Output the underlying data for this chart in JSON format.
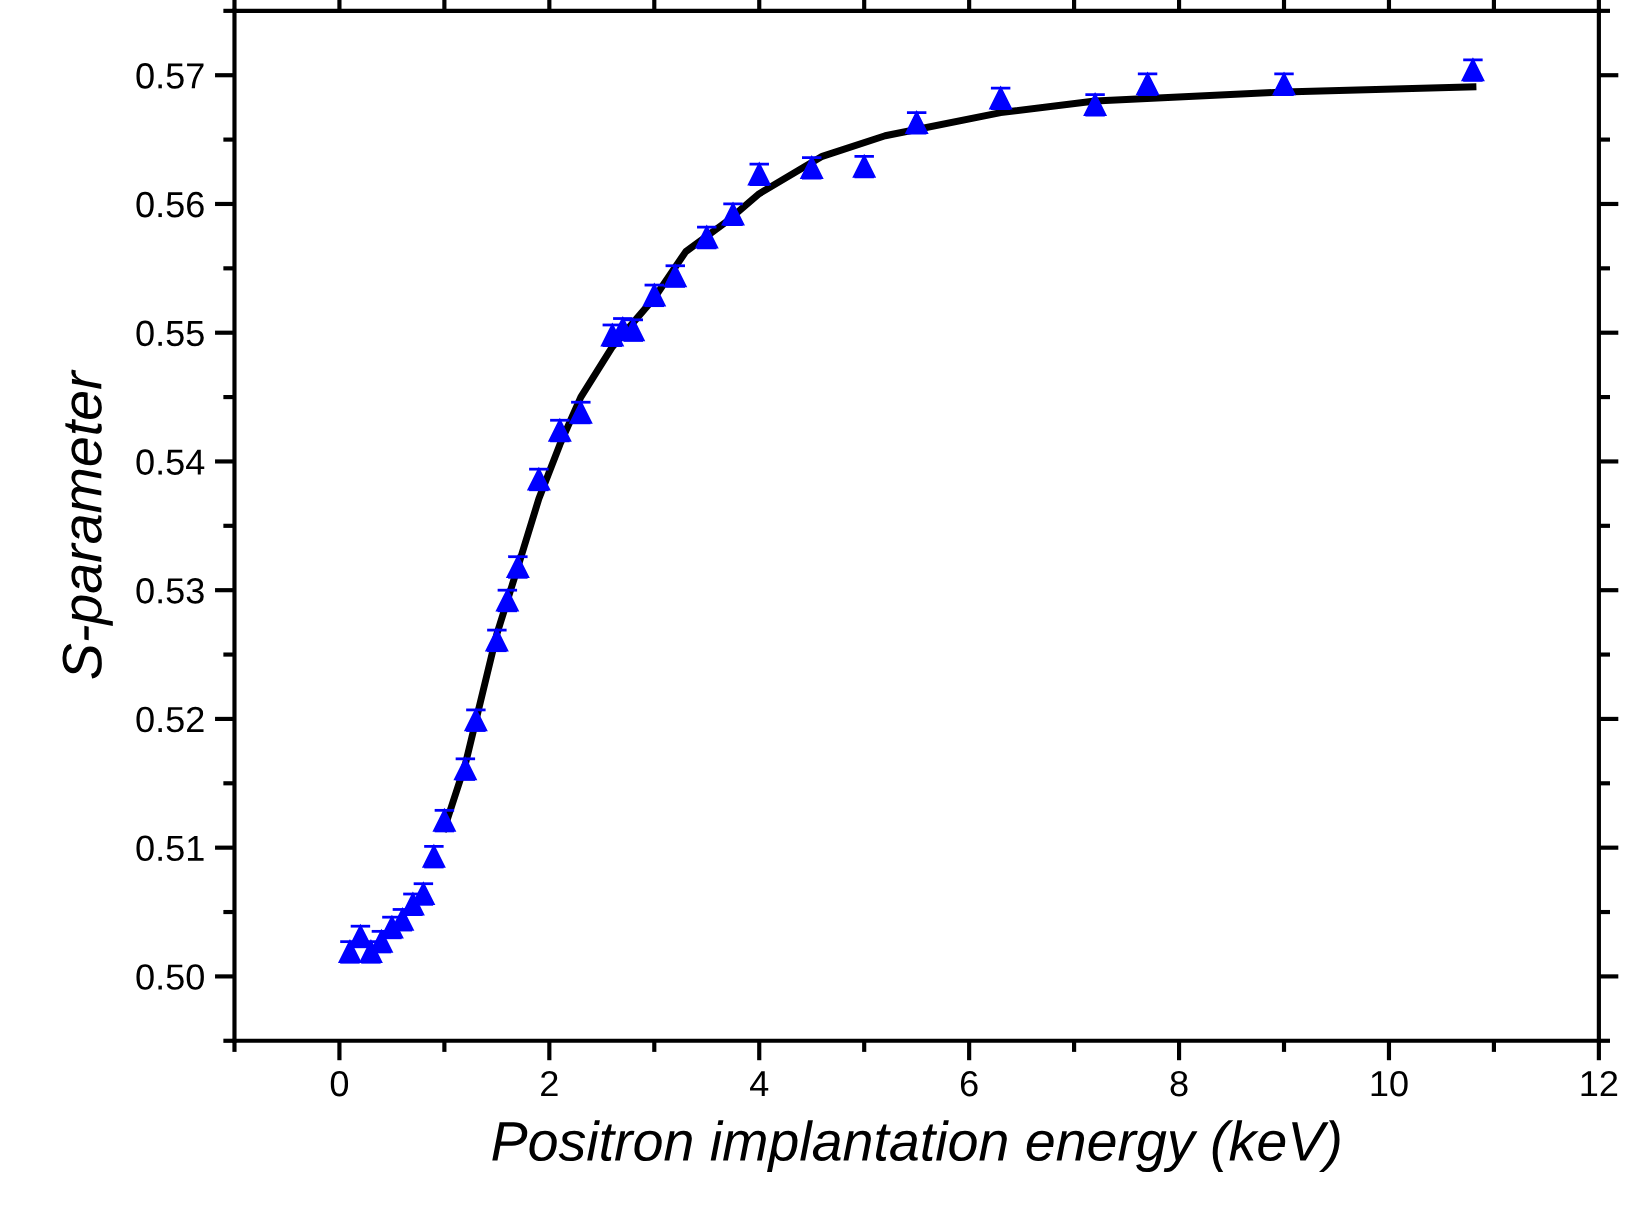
{
  "chart_data": {
    "type": "scatter",
    "xlabel": "Positron implantation energy (keV)",
    "ylabel": "S-parameter",
    "xlim": [
      -1,
      12
    ],
    "xticks": [
      0,
      2,
      4,
      6,
      8,
      10,
      12
    ],
    "ylim": [
      0.495,
      0.575
    ],
    "yticks": [
      {
        "value": 0.5,
        "label": "0.50"
      },
      {
        "value": 0.51,
        "label": "0.51"
      },
      {
        "value": 0.52,
        "label": "0.52"
      },
      {
        "value": 0.53,
        "label": "0.53"
      },
      {
        "value": 0.54,
        "label": "0.54"
      },
      {
        "value": 0.55,
        "label": "0.55"
      },
      {
        "value": 0.56,
        "label": "0.56"
      },
      {
        "value": 0.57,
        "label": "0.57"
      }
    ],
    "grid": false,
    "legend": false,
    "series": [
      {
        "color": "#0000ff",
        "marker": "triangle",
        "x": [
          0.1,
          0.2,
          0.3,
          0.4,
          0.5,
          0.6,
          0.7,
          0.8,
          0.9,
          1.0,
          1.2,
          1.3,
          1.5,
          1.6,
          1.7,
          1.9,
          2.1,
          2.3,
          2.6,
          2.7,
          2.8,
          3.0,
          3.2,
          3.5,
          3.75,
          4.0,
          4.5,
          5.0,
          5.5,
          6.3,
          7.2,
          7.7,
          9.0,
          10.8
        ],
        "values": [
          0.5019,
          0.5031,
          0.5019,
          0.5027,
          0.5038,
          0.5044,
          0.5056,
          0.5064,
          0.5093,
          0.5121,
          0.5161,
          0.5199,
          0.5261,
          0.5292,
          0.5318,
          0.5386,
          0.5424,
          0.5438,
          0.5498,
          0.5503,
          0.5502,
          0.5529,
          0.5544,
          0.5574,
          0.5592,
          0.5623,
          0.5628,
          0.5629,
          0.5663,
          0.5682,
          0.5677,
          0.5693,
          0.5693,
          0.5704
        ],
        "errors": [
          0.0008,
          0.0008,
          0.0008,
          0.0008,
          0.0008,
          0.0008,
          0.0008,
          0.0008,
          0.0008,
          0.0008,
          0.0008,
          0.0008,
          0.0008,
          0.0008,
          0.0008,
          0.0008,
          0.0008,
          0.0008,
          0.0008,
          0.0008,
          0.0008,
          0.0008,
          0.0008,
          0.0008,
          0.0008,
          0.0008,
          0.0008,
          0.0008,
          0.0008,
          0.0008,
          0.0008,
          0.0008,
          0.0008,
          0.0008
        ]
      },
      {
        "type": "line",
        "color": "#000000",
        "marker": "none",
        "line_style": "solid",
        "x": [
          1.0,
          1.2,
          1.5,
          1.7,
          1.9,
          2.1,
          2.3,
          2.6,
          3.0,
          3.3,
          3.7,
          4.0,
          4.6,
          5.2,
          6.3,
          7.2,
          9.0,
          10.8
        ],
        "values": [
          0.5115,
          0.5165,
          0.5266,
          0.5318,
          0.5371,
          0.5413,
          0.545,
          0.5489,
          0.5527,
          0.5563,
          0.5587,
          0.5608,
          0.5637,
          0.5653,
          0.5671,
          0.568,
          0.5687,
          0.5691
        ]
      }
    ]
  }
}
